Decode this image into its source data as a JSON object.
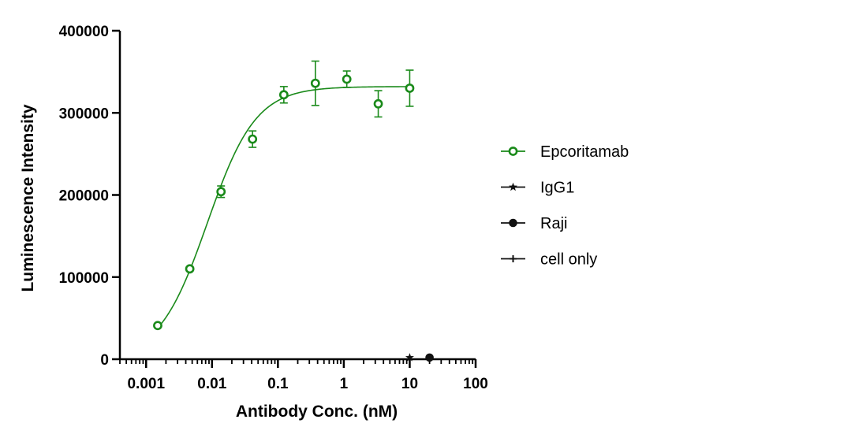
{
  "chart_data": {
    "type": "scatter",
    "title": "",
    "xlabel": "Antibody Conc. (nM)",
    "ylabel": "Luminescence Intensity",
    "xscale": "log",
    "xlim": [
      0.0004,
      100
    ],
    "ylim": [
      0,
      400000
    ],
    "x_ticks": [
      {
        "value": 0.001,
        "label": "0.001"
      },
      {
        "value": 0.01,
        "label": "0.01"
      },
      {
        "value": 0.1,
        "label": "0.1"
      },
      {
        "value": 1,
        "label": "1"
      },
      {
        "value": 10,
        "label": "10"
      },
      {
        "value": 100,
        "label": "100"
      }
    ],
    "y_ticks": [
      {
        "value": 0,
        "label": "0"
      },
      {
        "value": 100000,
        "label": "100000"
      },
      {
        "value": 200000,
        "label": "200000"
      },
      {
        "value": 300000,
        "label": "300000"
      },
      {
        "value": 400000,
        "label": "400000"
      }
    ],
    "grid": false,
    "legend_position": "right",
    "series": [
      {
        "name": "Epcoritamab",
        "color": "#1a8a1a",
        "marker": "open-circle",
        "fit": "sigmoidal",
        "points": [
          {
            "x": 0.0015,
            "y": 41000,
            "err": 0
          },
          {
            "x": 0.0046,
            "y": 110000,
            "err": 0
          },
          {
            "x": 0.0137,
            "y": 204000,
            "err": 7000
          },
          {
            "x": 0.0412,
            "y": 268000,
            "err": 10000
          },
          {
            "x": 0.123,
            "y": 322000,
            "err": 10000
          },
          {
            "x": 0.37,
            "y": 336000,
            "err": 27000
          },
          {
            "x": 1.11,
            "y": 341000,
            "err": 10000
          },
          {
            "x": 3.33,
            "y": 311000,
            "err": 16000
          },
          {
            "x": 10,
            "y": 330000,
            "err": 22000
          }
        ]
      },
      {
        "name": "IgG1",
        "color": "#111111",
        "marker": "star",
        "points": [
          {
            "x": 10,
            "y": 2000
          }
        ]
      },
      {
        "name": "Raji",
        "color": "#111111",
        "marker": "filled-circle",
        "points": [
          {
            "x": 20,
            "y": 2000
          }
        ]
      },
      {
        "name": "cell only",
        "color": "#111111",
        "marker": "plus",
        "points": []
      }
    ]
  }
}
